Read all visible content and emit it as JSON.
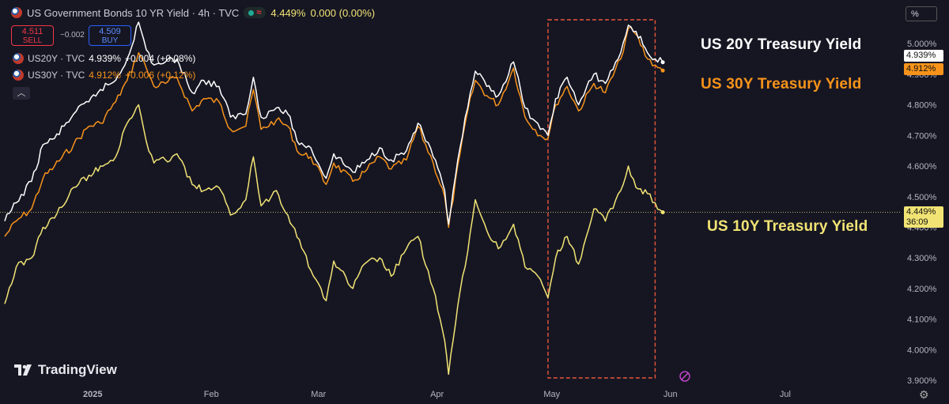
{
  "header": {
    "title": "US Government Bonds 10 YR Yield · 4h · TVC",
    "price": "4.449%",
    "change": "0.000 (0.00%)",
    "market_status_icon": "market-open-dot",
    "sell_price": "4.511",
    "sell_label": "SELL",
    "buy_price": "4.509",
    "buy_label": "BUY",
    "spread": "−0.002"
  },
  "legend": [
    {
      "symbol": "US20Y · TVC",
      "value": "4.939%",
      "change": "+0.004 (+0.08%)",
      "color": "#ffffff"
    },
    {
      "symbol": "US30Y · TVC",
      "value": "4.912%",
      "change": "+0.006 (+0.12%)",
      "color": "#f7931a"
    }
  ],
  "scale_mode": "%",
  "annotations": {
    "us20y": "US 20Y Treasury Yield",
    "us30y": "US 30Y Treasury Yield",
    "us10y": "US 10Y Treasury Yield"
  },
  "last_value_tags": {
    "us20y": "4.939%",
    "us30y": "4.912%",
    "us10y": "4.449%",
    "us10y_countdown": "36:09"
  },
  "logo_text": "TradingView",
  "colors": {
    "background": "#161623",
    "us10y": "#f2e474",
    "us20y": "#ffffff",
    "us30y": "#f7931a",
    "highlight_box": "#e8563a"
  },
  "chart_data": {
    "type": "line",
    "x_ticks": [
      "2025",
      "Feb",
      "Mar",
      "Apr",
      "May",
      "Jun",
      "Jul"
    ],
    "y_ticks": [
      "5.000%",
      "4.900%",
      "4.800%",
      "4.700%",
      "4.600%",
      "4.500%",
      "4.400%",
      "4.300%",
      "4.200%",
      "4.100%",
      "4.000%",
      "3.900%"
    ],
    "ylim": [
      3.89,
      5.07
    ],
    "x_range": [
      "2024-12-09",
      "2025-07-31"
    ],
    "current_price_line": 4.449,
    "highlight_range": [
      "2025-04-30",
      "2025-05-28"
    ],
    "series": [
      {
        "name": "US30Y",
        "color": "#f7931a",
        "points": [
          [
            "2024-12-09",
            4.37
          ],
          [
            "2024-12-12",
            4.42
          ],
          [
            "2024-12-16",
            4.46
          ],
          [
            "2024-12-19",
            4.56
          ],
          [
            "2024-12-22",
            4.6
          ],
          [
            "2024-12-27",
            4.67
          ],
          [
            "2024-12-31",
            4.73
          ],
          [
            "2025-01-03",
            4.74
          ],
          [
            "2025-01-07",
            4.81
          ],
          [
            "2025-01-10",
            4.88
          ],
          [
            "2025-01-13",
            4.97
          ],
          [
            "2025-01-15",
            4.92
          ],
          [
            "2025-01-17",
            4.86
          ],
          [
            "2025-01-20",
            4.87
          ],
          [
            "2025-01-23",
            4.89
          ],
          [
            "2025-01-27",
            4.78
          ],
          [
            "2025-01-30",
            4.82
          ],
          [
            "2025-02-03",
            4.81
          ],
          [
            "2025-02-06",
            4.72
          ],
          [
            "2025-02-10",
            4.73
          ],
          [
            "2025-02-12",
            4.85
          ],
          [
            "2025-02-14",
            4.72
          ],
          [
            "2025-02-18",
            4.75
          ],
          [
            "2025-02-21",
            4.73
          ],
          [
            "2025-02-24",
            4.64
          ],
          [
            "2025-02-27",
            4.63
          ],
          [
            "2025-03-03",
            4.54
          ],
          [
            "2025-03-05",
            4.61
          ],
          [
            "2025-03-10",
            4.55
          ],
          [
            "2025-03-13",
            4.58
          ],
          [
            "2025-03-17",
            4.63
          ],
          [
            "2025-03-20",
            4.59
          ],
          [
            "2025-03-24",
            4.62
          ],
          [
            "2025-03-27",
            4.73
          ],
          [
            "2025-03-31",
            4.61
          ],
          [
            "2025-04-03",
            4.5
          ],
          [
            "2025-04-04",
            4.4
          ],
          [
            "2025-04-07",
            4.64
          ],
          [
            "2025-04-09",
            4.78
          ],
          [
            "2025-04-11",
            4.88
          ],
          [
            "2025-04-14",
            4.83
          ],
          [
            "2025-04-17",
            4.8
          ],
          [
            "2025-04-21",
            4.92
          ],
          [
            "2025-04-24",
            4.76
          ],
          [
            "2025-04-28",
            4.7
          ],
          [
            "2025-04-30",
            4.69
          ],
          [
            "2025-05-02",
            4.8
          ],
          [
            "2025-05-05",
            4.86
          ],
          [
            "2025-05-08",
            4.78
          ],
          [
            "2025-05-12",
            4.87
          ],
          [
            "2025-05-15",
            4.84
          ],
          [
            "2025-05-19",
            4.95
          ],
          [
            "2025-05-21",
            5.05
          ],
          [
            "2025-05-23",
            5.03
          ],
          [
            "2025-05-26",
            4.95
          ],
          [
            "2025-05-28",
            4.93
          ],
          [
            "2025-05-30",
            4.912
          ]
        ]
      },
      {
        "name": "US20Y",
        "color": "#ffffff",
        "points": [
          [
            "2024-12-09",
            4.42
          ],
          [
            "2024-12-12",
            4.48
          ],
          [
            "2024-12-16",
            4.55
          ],
          [
            "2024-12-19",
            4.67
          ],
          [
            "2024-12-22",
            4.69
          ],
          [
            "2024-12-27",
            4.77
          ],
          [
            "2024-12-31",
            4.81
          ],
          [
            "2025-01-03",
            4.85
          ],
          [
            "2025-01-07",
            4.88
          ],
          [
            "2025-01-10",
            4.95
          ],
          [
            "2025-01-13",
            5.07
          ],
          [
            "2025-01-15",
            4.98
          ],
          [
            "2025-01-17",
            4.93
          ],
          [
            "2025-01-20",
            4.94
          ],
          [
            "2025-01-23",
            4.95
          ],
          [
            "2025-01-27",
            4.84
          ],
          [
            "2025-01-30",
            4.88
          ],
          [
            "2025-02-03",
            4.86
          ],
          [
            "2025-02-06",
            4.76
          ],
          [
            "2025-02-10",
            4.77
          ],
          [
            "2025-02-12",
            4.89
          ],
          [
            "2025-02-14",
            4.76
          ],
          [
            "2025-02-18",
            4.79
          ],
          [
            "2025-02-21",
            4.77
          ],
          [
            "2025-02-24",
            4.67
          ],
          [
            "2025-02-27",
            4.66
          ],
          [
            "2025-03-03",
            4.56
          ],
          [
            "2025-03-05",
            4.64
          ],
          [
            "2025-03-10",
            4.58
          ],
          [
            "2025-03-13",
            4.61
          ],
          [
            "2025-03-17",
            4.66
          ],
          [
            "2025-03-20",
            4.62
          ],
          [
            "2025-03-24",
            4.65
          ],
          [
            "2025-03-27",
            4.74
          ],
          [
            "2025-03-31",
            4.63
          ],
          [
            "2025-04-03",
            4.52
          ],
          [
            "2025-04-04",
            4.41
          ],
          [
            "2025-04-07",
            4.66
          ],
          [
            "2025-04-09",
            4.79
          ],
          [
            "2025-04-11",
            4.91
          ],
          [
            "2025-04-14",
            4.86
          ],
          [
            "2025-04-17",
            4.83
          ],
          [
            "2025-04-21",
            4.94
          ],
          [
            "2025-04-24",
            4.79
          ],
          [
            "2025-04-28",
            4.72
          ],
          [
            "2025-04-30",
            4.7
          ],
          [
            "2025-05-02",
            4.82
          ],
          [
            "2025-05-05",
            4.89
          ],
          [
            "2025-05-08",
            4.8
          ],
          [
            "2025-05-12",
            4.9
          ],
          [
            "2025-05-15",
            4.87
          ],
          [
            "2025-05-19",
            4.97
          ],
          [
            "2025-05-21",
            5.06
          ],
          [
            "2025-05-23",
            5.04
          ],
          [
            "2025-05-26",
            4.97
          ],
          [
            "2025-05-28",
            4.95
          ],
          [
            "2025-05-30",
            4.939
          ]
        ]
      },
      {
        "name": "US10Y",
        "color": "#f2e474",
        "points": [
          [
            "2024-12-09",
            4.15
          ],
          [
            "2024-12-12",
            4.27
          ],
          [
            "2024-12-16",
            4.3
          ],
          [
            "2024-12-19",
            4.4
          ],
          [
            "2024-12-22",
            4.43
          ],
          [
            "2024-12-27",
            4.53
          ],
          [
            "2024-12-31",
            4.57
          ],
          [
            "2025-01-03",
            4.6
          ],
          [
            "2025-01-07",
            4.63
          ],
          [
            "2025-01-10",
            4.74
          ],
          [
            "2025-01-13",
            4.8
          ],
          [
            "2025-01-15",
            4.68
          ],
          [
            "2025-01-17",
            4.61
          ],
          [
            "2025-01-20",
            4.62
          ],
          [
            "2025-01-23",
            4.64
          ],
          [
            "2025-01-27",
            4.54
          ],
          [
            "2025-01-30",
            4.52
          ],
          [
            "2025-02-03",
            4.53
          ],
          [
            "2025-02-06",
            4.44
          ],
          [
            "2025-02-10",
            4.49
          ],
          [
            "2025-02-12",
            4.63
          ],
          [
            "2025-02-14",
            4.47
          ],
          [
            "2025-02-18",
            4.52
          ],
          [
            "2025-02-21",
            4.44
          ],
          [
            "2025-02-24",
            4.36
          ],
          [
            "2025-02-27",
            4.26
          ],
          [
            "2025-03-03",
            4.16
          ],
          [
            "2025-03-05",
            4.29
          ],
          [
            "2025-03-10",
            4.2
          ],
          [
            "2025-03-13",
            4.28
          ],
          [
            "2025-03-17",
            4.3
          ],
          [
            "2025-03-20",
            4.24
          ],
          [
            "2025-03-24",
            4.33
          ],
          [
            "2025-03-27",
            4.37
          ],
          [
            "2025-03-31",
            4.2
          ],
          [
            "2025-04-03",
            4.03
          ],
          [
            "2025-04-04",
            3.92
          ],
          [
            "2025-04-07",
            4.19
          ],
          [
            "2025-04-09",
            4.32
          ],
          [
            "2025-04-11",
            4.49
          ],
          [
            "2025-04-14",
            4.39
          ],
          [
            "2025-04-17",
            4.33
          ],
          [
            "2025-04-21",
            4.41
          ],
          [
            "2025-04-24",
            4.27
          ],
          [
            "2025-04-28",
            4.23
          ],
          [
            "2025-04-30",
            4.17
          ],
          [
            "2025-05-02",
            4.3
          ],
          [
            "2025-05-05",
            4.37
          ],
          [
            "2025-05-08",
            4.28
          ],
          [
            "2025-05-12",
            4.46
          ],
          [
            "2025-05-15",
            4.42
          ],
          [
            "2025-05-19",
            4.52
          ],
          [
            "2025-05-21",
            4.6
          ],
          [
            "2025-05-23",
            4.53
          ],
          [
            "2025-05-26",
            4.51
          ],
          [
            "2025-05-28",
            4.48
          ],
          [
            "2025-05-30",
            4.449
          ]
        ]
      }
    ]
  }
}
